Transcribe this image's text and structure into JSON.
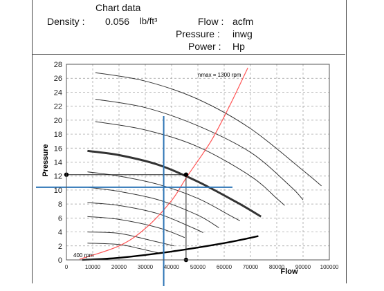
{
  "header": {
    "title": "Chart data",
    "density_label": "Density :",
    "density_value": "0.056",
    "density_unit": "lb/ft³",
    "flow_label": "Flow :",
    "flow_unit": "acfm",
    "pressure_label": "Pressure :",
    "pressure_unit": "inwg",
    "power_label": "Power :",
    "power_unit": "Hp"
  },
  "chart_data": {
    "type": "line",
    "xlabel": "Flow",
    "ylabel": "Pressure",
    "xlim": [
      0,
      100000
    ],
    "ylim": [
      0,
      28
    ],
    "xticks": [
      0,
      10000,
      20000,
      30000,
      40000,
      50000,
      60000,
      70000,
      80000,
      90000,
      100000
    ],
    "yticks": [
      0,
      2,
      4,
      6,
      8,
      10,
      12,
      14,
      16,
      18,
      20,
      22,
      24,
      26,
      28
    ],
    "grid": true,
    "annotations": {
      "nmax": "nmax = 1300 rpm",
      "nmin": "400 rpm"
    },
    "colors": {
      "system_curve": "#ff5555",
      "guides": "#2e75b6",
      "curves": "#333333",
      "highlight": "#000000"
    },
    "series": [
      {
        "x": [
          11000,
          30000,
          50000,
          70000,
          90000,
          97000
        ],
        "y": [
          26.8,
          25.6,
          23.0,
          18.8,
          12.8,
          10.6
        ]
      },
      {
        "x": [
          11000,
          30000,
          50000,
          70000,
          85000,
          90000
        ],
        "y": [
          23.0,
          21.8,
          19.2,
          15.4,
          10.6,
          8.6
        ]
      },
      {
        "x": [
          11000,
          30000,
          50000,
          70000,
          80000,
          83000
        ],
        "y": [
          19.8,
          18.6,
          16.2,
          12.0,
          8.8,
          7.8
        ]
      },
      {
        "x": [
          8000,
          20000,
          35000,
          50000,
          65000,
          74000
        ],
        "y": [
          15.6,
          15.0,
          13.6,
          11.2,
          8.2,
          6.2
        ]
      },
      {
        "x": [
          8000,
          20000,
          35000,
          50000,
          62000,
          66000
        ],
        "y": [
          12.6,
          12.0,
          10.8,
          8.8,
          6.4,
          5.6
        ]
      },
      {
        "x": [
          8000,
          20000,
          35000,
          50000,
          58000
        ],
        "y": [
          10.4,
          9.8,
          8.6,
          6.4,
          4.6
        ]
      },
      {
        "x": [
          8000,
          20000,
          35000,
          48000,
          52000
        ],
        "y": [
          8.2,
          7.8,
          6.6,
          4.6,
          3.9
        ]
      },
      {
        "x": [
          8000,
          20000,
          35000,
          45000
        ],
        "y": [
          6.2,
          5.8,
          4.6,
          3.2
        ]
      },
      {
        "x": [
          8000,
          20000,
          32000,
          41000
        ],
        "y": [
          4.0,
          3.8,
          2.8,
          2.0
        ]
      },
      {
        "x": [
          8000,
          20000,
          28000,
          35000
        ],
        "y": [
          2.4,
          2.2,
          1.6,
          1.0
        ]
      },
      {
        "x": [
          6000,
          20000,
          40000,
          60000,
          73000
        ],
        "y": [
          0.0,
          0.3,
          1.2,
          2.4,
          3.4
        ],
        "role": "highlight"
      },
      {
        "x": [
          5000,
          20000,
          30000,
          40000,
          46000,
          55000,
          62000,
          69000
        ],
        "y": [
          0.1,
          2.0,
          4.5,
          8.5,
          12.0,
          17.0,
          22.0,
          27.5
        ],
        "role": "system"
      }
    ],
    "operating_point": {
      "x": 45500,
      "y": 12.2
    },
    "guide_lines": {
      "vertical_x": 37000,
      "horizontal_y": 10.4
    }
  }
}
